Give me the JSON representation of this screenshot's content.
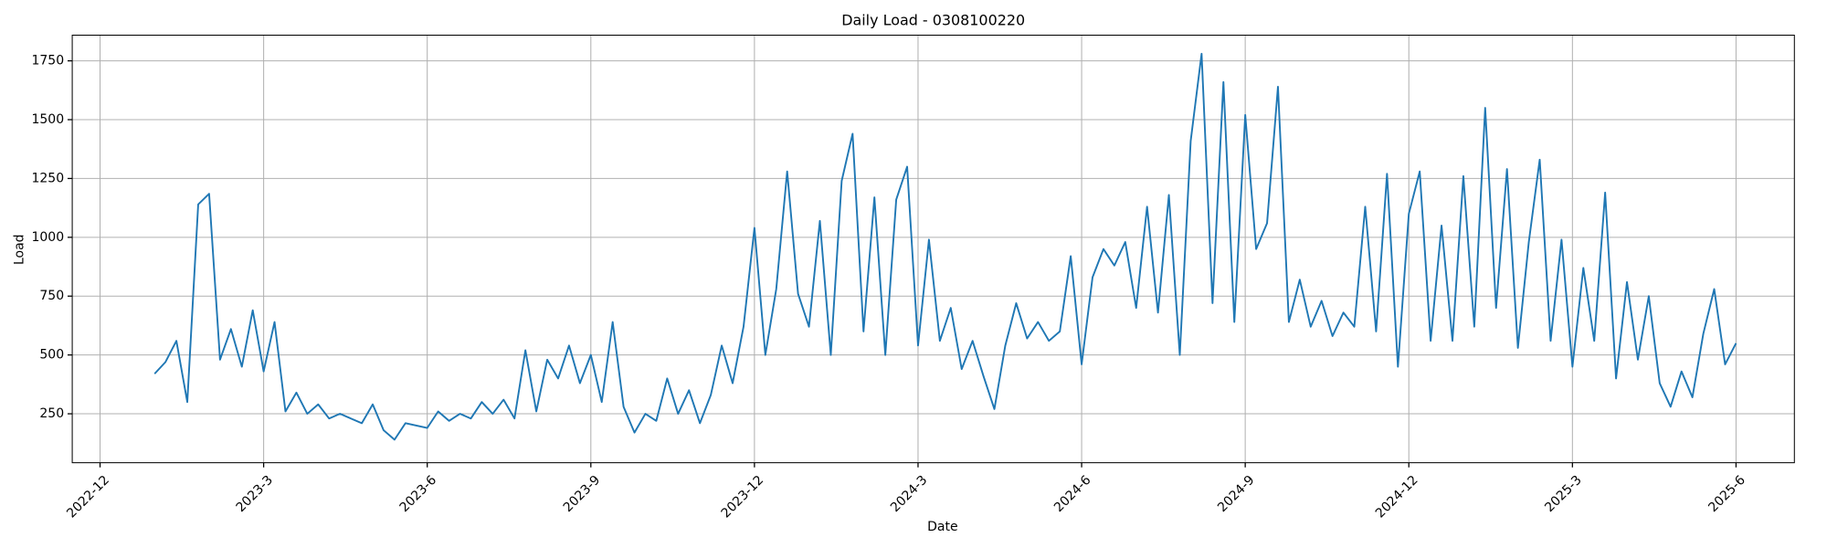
{
  "chart_data": {
    "type": "line",
    "title": "Daily Load - 0308100220",
    "x_label": "Date",
    "y_label": "Load",
    "x": [
      1.0,
      1.2,
      1.4,
      1.6,
      1.8,
      2.0,
      2.2,
      2.4,
      2.6,
      2.8,
      3.0,
      3.2,
      3.4,
      3.6,
      3.8,
      4.0,
      4.2,
      4.4,
      4.6,
      4.8,
      5.0,
      5.2,
      5.4,
      5.6,
      5.8,
      6.0,
      6.2,
      6.4,
      6.6,
      6.8,
      7.0,
      7.2,
      7.4,
      7.6,
      7.8,
      8.0,
      8.2,
      8.4,
      8.6,
      8.8,
      9.0,
      9.2,
      9.4,
      9.6,
      9.8,
      10.0,
      10.2,
      10.4,
      10.6,
      10.8,
      11.0,
      11.2,
      11.4,
      11.6,
      11.8,
      12.0,
      12.2,
      12.4,
      12.6,
      12.8,
      13.0,
      13.2,
      13.4,
      13.6,
      13.8,
      14.0,
      14.2,
      14.4,
      14.6,
      14.8,
      15.0,
      15.2,
      15.4,
      15.6,
      15.8,
      16.0,
      16.2,
      16.4,
      16.6,
      16.8,
      17.0,
      17.2,
      17.4,
      17.6,
      17.8,
      18.0,
      18.2,
      18.4,
      18.6,
      18.8,
      19.0,
      19.2,
      19.4,
      19.6,
      19.8,
      20.0,
      20.2,
      20.4,
      20.6,
      20.8,
      21.0,
      21.2,
      21.4,
      21.6,
      21.8,
      22.0,
      22.2,
      22.4,
      22.6,
      22.8,
      23.0,
      23.2,
      23.4,
      23.6,
      23.8,
      24.0,
      24.2,
      24.4,
      24.6,
      24.8,
      25.0,
      25.2,
      25.4,
      25.6,
      25.8,
      26.0,
      26.2,
      26.4,
      26.6,
      26.8,
      27.0,
      27.2,
      27.4,
      27.6,
      27.8,
      28.0,
      28.2,
      28.4,
      28.6,
      28.8,
      29.0,
      29.2,
      29.4,
      29.6,
      29.8,
      30.0
    ],
    "series": [
      {
        "name": "Load",
        "color": "#1f77b4",
        "values": [
          420,
          470,
          560,
          300,
          1140,
          1185,
          480,
          610,
          450,
          690,
          430,
          640,
          260,
          340,
          250,
          290,
          230,
          250,
          230,
          210,
          290,
          180,
          140,
          210,
          200,
          190,
          260,
          220,
          250,
          230,
          300,
          250,
          310,
          230,
          520,
          260,
          480,
          400,
          540,
          380,
          500,
          300,
          640,
          280,
          170,
          250,
          220,
          400,
          250,
          350,
          210,
          330,
          540,
          380,
          620,
          1040,
          500,
          780,
          1280,
          760,
          620,
          1070,
          500,
          1240,
          1440,
          600,
          1170,
          500,
          1160,
          1300,
          540,
          990,
          560,
          700,
          440,
          560,
          410,
          270,
          540,
          720,
          570,
          640,
          560,
          600,
          920,
          460,
          830,
          950,
          880,
          980,
          700,
          1130,
          680,
          1180,
          500,
          1410,
          1780,
          720,
          1660,
          640,
          1520,
          950,
          1060,
          1640,
          640,
          820,
          620,
          730,
          580,
          680,
          620,
          1130,
          600,
          1270,
          450,
          1100,
          1280,
          560,
          1050,
          560,
          1260,
          620,
          1550,
          700,
          1290,
          530,
          980,
          1330,
          560,
          990,
          450,
          870,
          560,
          1190,
          400,
          810,
          480,
          750,
          380,
          280,
          430,
          320,
          590,
          780,
          460,
          550
        ]
      }
    ],
    "xlim": [
      -0.51,
      31.07
    ],
    "xticks": [
      {
        "value": 0,
        "label": "2022-12"
      },
      {
        "value": 3,
        "label": "2023-3"
      },
      {
        "value": 6,
        "label": "2023-6"
      },
      {
        "value": 9,
        "label": "2023-9"
      },
      {
        "value": 12,
        "label": "2023-12"
      },
      {
        "value": 15,
        "label": "2024-3"
      },
      {
        "value": 18,
        "label": "2024-6"
      },
      {
        "value": 21,
        "label": "2024-9"
      },
      {
        "value": 24,
        "label": "2024-12"
      },
      {
        "value": 27,
        "label": "2025-3"
      },
      {
        "value": 30,
        "label": "2025-6"
      }
    ],
    "ylim": [
      42,
      1859
    ],
    "yticks": [
      250,
      500,
      750,
      1000,
      1250,
      1500,
      1750
    ],
    "grid": true
  }
}
